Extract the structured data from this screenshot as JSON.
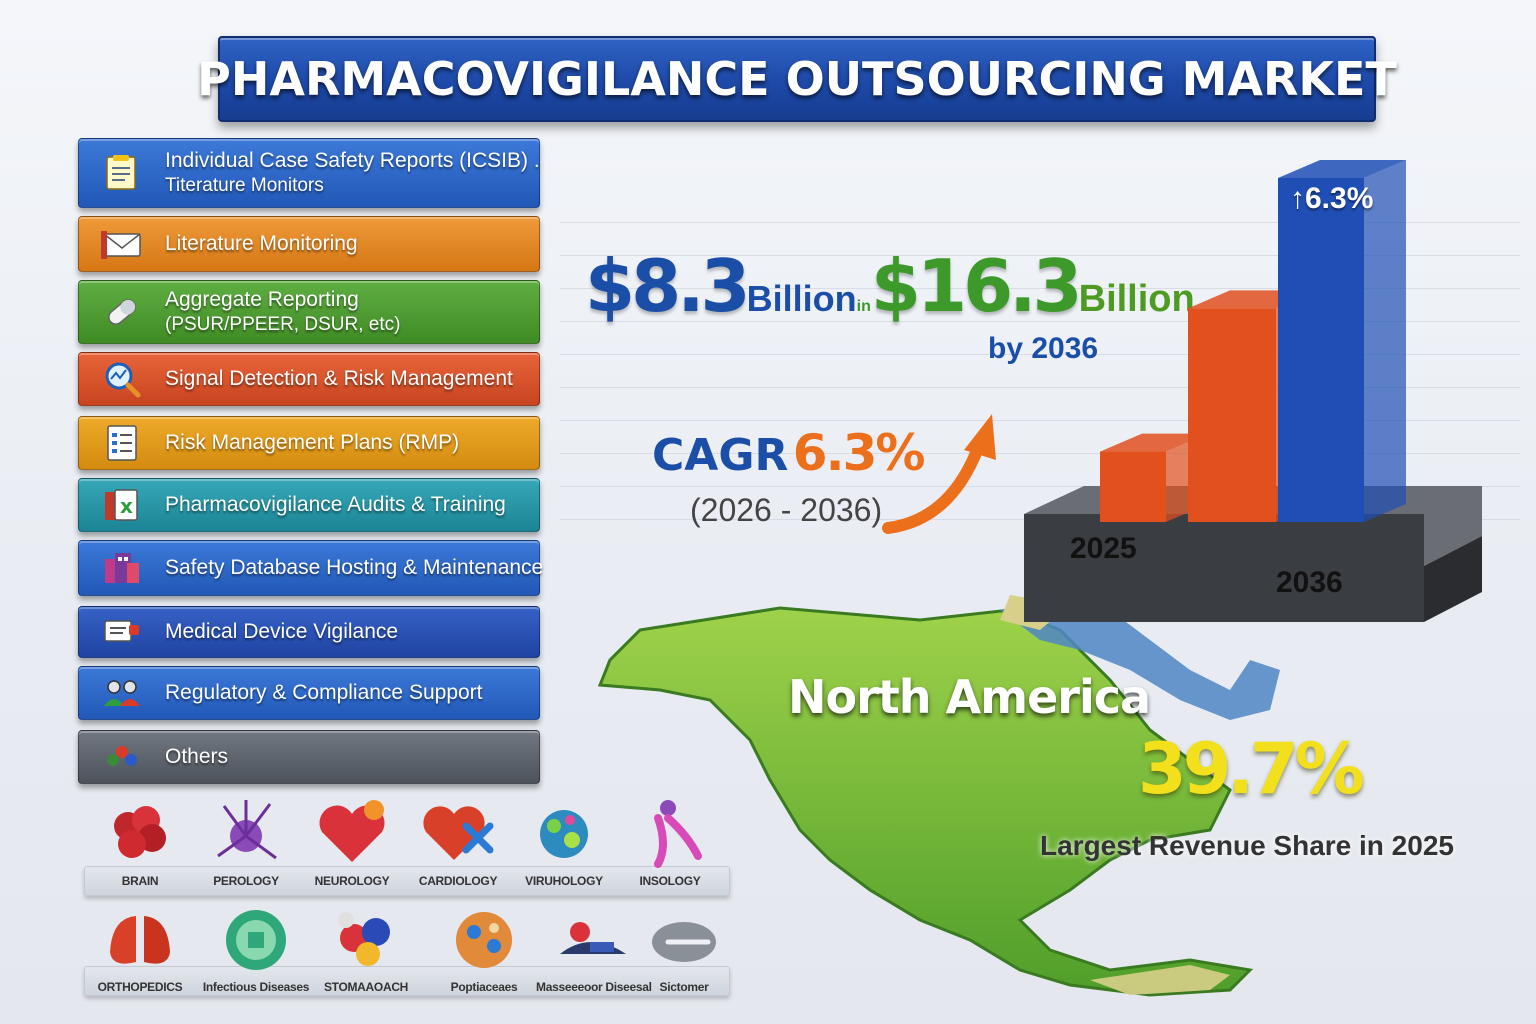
{
  "title": "PHARMACOVIGILANCE OUTSOURCING MARKET",
  "services": [
    {
      "line1": "Individual Case Safety Reports (ICSIB) .",
      "line2": "Titerature Monitors",
      "icon": "document-icon",
      "color": "#2258b8"
    },
    {
      "line1": "Literature Monitoring",
      "line2": "",
      "icon": "envelope-icon",
      "color": "#d67714"
    },
    {
      "line1": "Aggregate Reporting",
      "line2": "(PSUR/PPEER, DSUR, etc)",
      "icon": "pill-icon",
      "color": "#3f8b25"
    },
    {
      "line1": "Signal Detection & Risk Management",
      "line2": "",
      "icon": "magnifier-icon",
      "color": "#c84420"
    },
    {
      "line1": "Risk Management Plans (RMP)",
      "line2": "",
      "icon": "checklist-icon",
      "color": "#d48b0f"
    },
    {
      "line1": "Pharmacovigilance Audits & Training",
      "line2": "",
      "icon": "audit-icon",
      "color": "#1c8494"
    },
    {
      "line1": "Safety Database Hosting & Maintenance",
      "line2": "",
      "icon": "database-icon",
      "color": "#2258b8"
    },
    {
      "line1": "Medical Device Vigilance",
      "line2": "",
      "icon": "monitor-icon",
      "color": "#1f43a2"
    },
    {
      "line1": "Regulatory & Compliance Support",
      "line2": "",
      "icon": "people-icon",
      "color": "#2258b8"
    },
    {
      "line1": "Others",
      "line2": "",
      "icon": "dots-icon",
      "color": "#4c535b"
    }
  ],
  "headline": {
    "start_value": "$8.3",
    "start_unit": "Billion",
    "connector": "in",
    "end_value": "$16.3",
    "end_unit": "Billion",
    "by_year": "by 2036"
  },
  "cagr": {
    "label": "CAGR",
    "value": "6.3%",
    "period": "(2026 - 2036)"
  },
  "chart_data": {
    "type": "bar",
    "categories": [
      "2025",
      "2036"
    ],
    "series": [
      {
        "values": [
          8.3,
          16.3
        ]
      }
    ],
    "bar_annotation": "↑6.3%",
    "colors": [
      "#e2501e",
      "#1f4fb5"
    ]
  },
  "region": {
    "name": "North America",
    "share": "39.7%",
    "note": "Largest Revenue Share in 2025"
  },
  "therapeutic_areas": [
    {
      "label": "BRAIN",
      "icon": "brain-icon"
    },
    {
      "label": "PEROLOGY",
      "icon": "neuron-icon"
    },
    {
      "label": "NEUROLOGY",
      "icon": "heart-icon"
    },
    {
      "label": "CARDIOLOGY",
      "icon": "heart-cross-icon"
    },
    {
      "label": "VIRUHOLOGY",
      "icon": "virus-icon"
    },
    {
      "label": "INSOLOGY",
      "icon": "figure-icon"
    },
    {
      "label": "ORTHOPEDICS",
      "icon": "lungs-icon"
    },
    {
      "label": "Infectious Diseases",
      "icon": "shield-icon"
    },
    {
      "label": "STOMAAOACH",
      "icon": "organs-icon"
    },
    {
      "label": "Poptiaceaes",
      "icon": "cells-icon"
    },
    {
      "label": "Masseeeoor Diseesal",
      "icon": "scanner-icon"
    },
    {
      "label": "Sictomer",
      "icon": "device-icon"
    }
  ]
}
